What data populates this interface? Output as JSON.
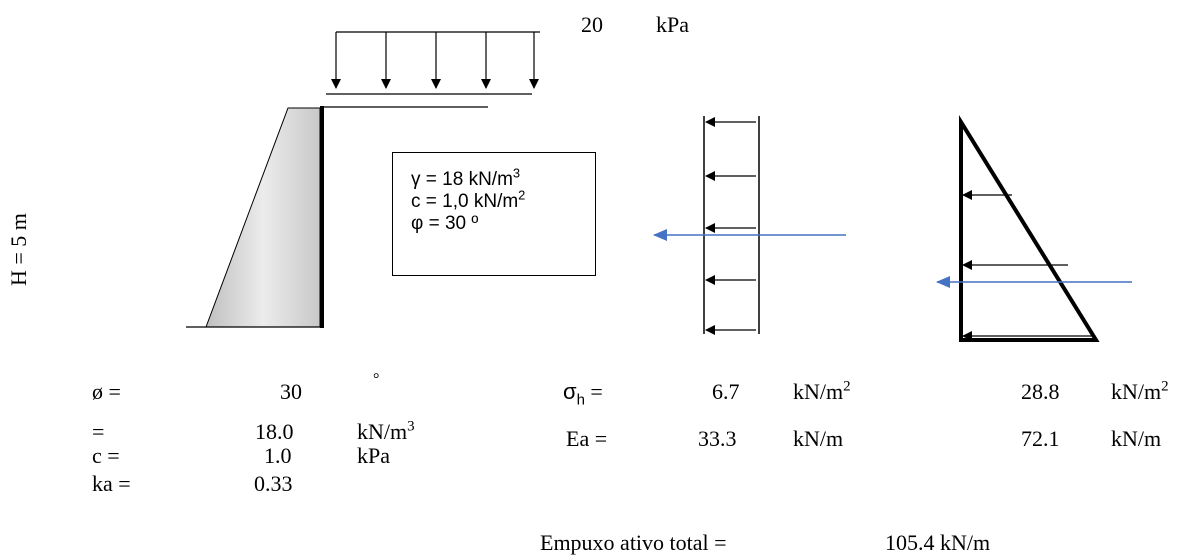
{
  "surcharge": {
    "value": "20",
    "unit": "kPa"
  },
  "wall_height_label": "H = 5 m",
  "soil_properties": {
    "gamma": "γ = 18 kN/m",
    "gamma_sup": "3",
    "c": "c = 1,0 kN/m",
    "c_sup": "2",
    "phi": "φ = 30 º"
  },
  "inputs": [
    {
      "label": "ø =",
      "value": "30",
      "unit": "°",
      "unit_sup": ""
    },
    {
      "label": "=",
      "value": "18.0",
      "unit": "kN/m",
      "unit_sup": "3"
    },
    {
      "label": "c =",
      "value": "1.0",
      "unit": "kPa",
      "unit_sup": ""
    },
    {
      "label": "ka =",
      "value": "0.33",
      "unit": "",
      "unit_sup": ""
    }
  ],
  "results": {
    "sigma_h_label": "σ",
    "sigma_h_sub": "h",
    "sigma_h_eq": " =",
    "sigma_h_uniform": "6.7",
    "sigma_h_triangular": "28.8",
    "sigma_unit": "kN/m",
    "sigma_unit_sup": "2",
    "ea_label": "Ea =",
    "ea_uniform": "33.3",
    "ea_triangular": "72.1",
    "ea_unit": "kN/m",
    "total_label": "Empuxo ativo total =",
    "total_value": "105.4 kN/m"
  },
  "colors": {
    "resultant_arrow": "#4472C4",
    "wall_fill": "#d9d9d9",
    "line": "#000000"
  }
}
